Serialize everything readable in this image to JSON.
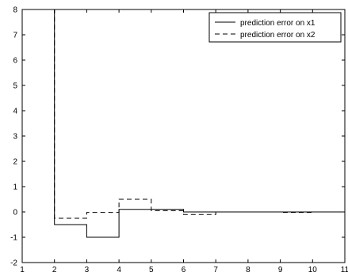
{
  "chart_data": {
    "type": "line",
    "step": true,
    "title": "",
    "xlabel": "",
    "ylabel": "",
    "xlim": [
      1,
      11
    ],
    "ylim": [
      -2,
      8
    ],
    "xticks": [
      1,
      2,
      3,
      4,
      5,
      6,
      7,
      8,
      9,
      10,
      11
    ],
    "yticks": [
      -2,
      -1,
      0,
      1,
      2,
      3,
      4,
      5,
      6,
      7,
      8
    ],
    "grid": false,
    "legend_position": "top-right",
    "series": [
      {
        "name": "prediction error on x1",
        "line_style": "solid",
        "color": "#000000",
        "x": [
          1,
          2,
          2,
          3,
          3,
          4,
          4,
          5,
          5,
          6,
          6,
          7,
          7,
          8,
          8,
          9,
          9,
          10,
          10,
          11
        ],
        "y": [
          8,
          8,
          -0.5,
          -0.5,
          -1.0,
          -1.0,
          0.1,
          0.1,
          0.1,
          0.1,
          0.0,
          0.0,
          0.0,
          0.0,
          0.0,
          0.0,
          0.0,
          0.0,
          0.0,
          0.0
        ]
      },
      {
        "name": "prediction error on x2",
        "line_style": "dashed",
        "color": "#000000",
        "x": [
          1,
          2,
          2,
          3,
          3,
          4,
          4,
          5,
          5,
          6,
          6,
          7,
          7,
          8,
          8,
          9,
          9,
          10,
          10,
          11
        ],
        "y": [
          8,
          8,
          -0.25,
          -0.25,
          -0.02,
          -0.02,
          0.5,
          0.5,
          0.05,
          0.05,
          -0.1,
          -0.1,
          0.0,
          0.0,
          0.0,
          0.0,
          -0.02,
          -0.02,
          0.0,
          0.0
        ]
      }
    ]
  }
}
